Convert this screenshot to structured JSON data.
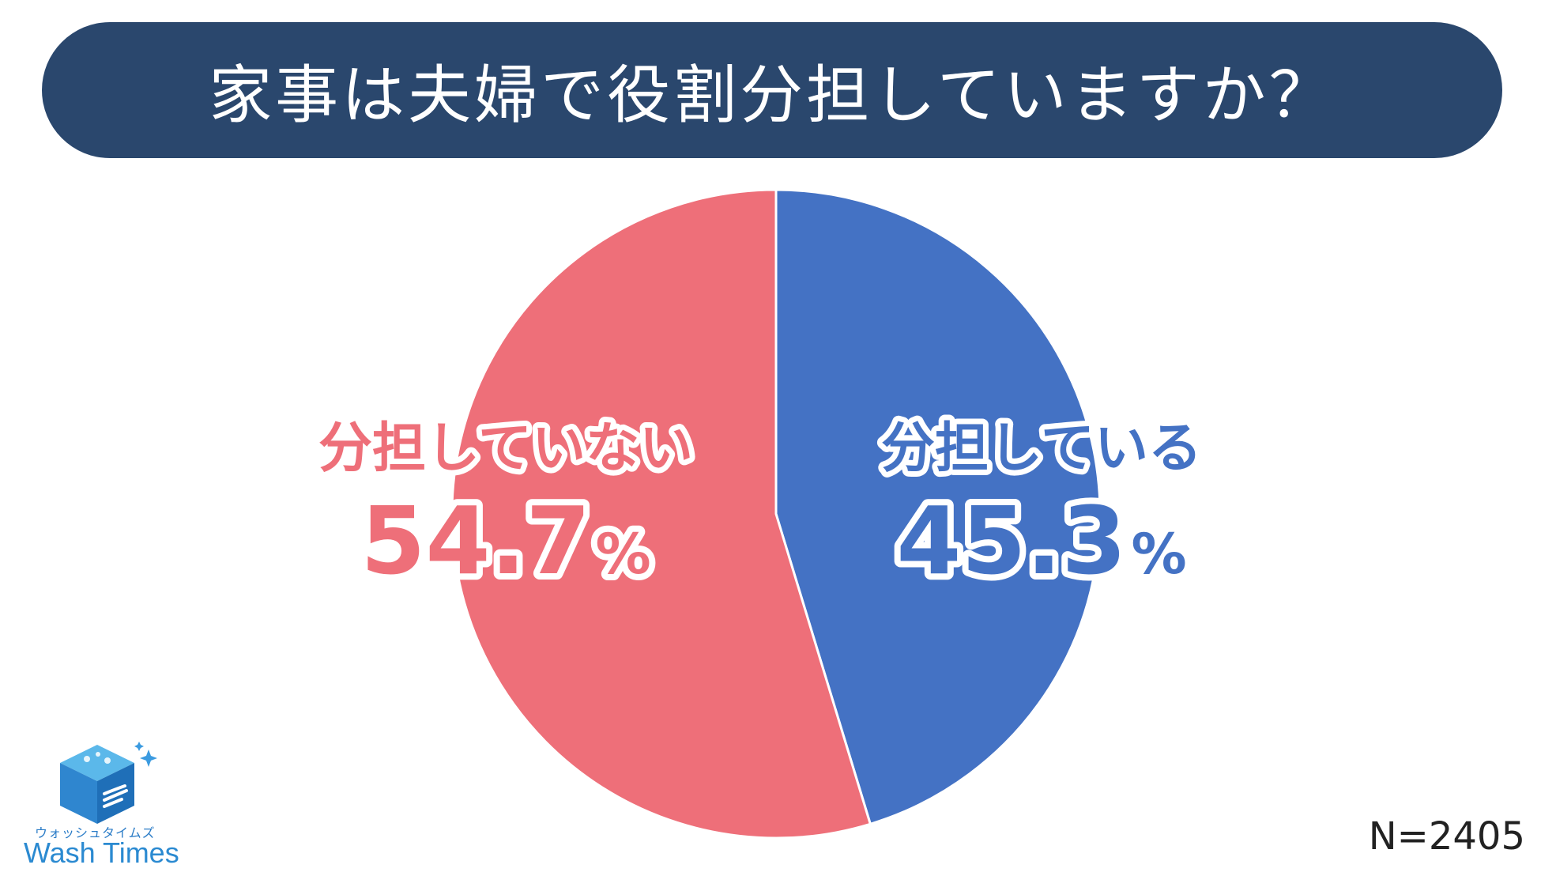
{
  "header": {
    "title": "家事は夫婦で役割分担していますか？"
  },
  "chart_data": {
    "type": "pie",
    "title": "家事は夫婦で役割分担していますか？",
    "slices": [
      {
        "label": "分担している",
        "value": 45.3,
        "display": "45.3",
        "unit": "%",
        "color": "#4472c4"
      },
      {
        "label": "分担していない",
        "value": 54.7,
        "display": "54.7",
        "unit": "%",
        "color": "#ee6f79"
      }
    ],
    "start": "12 o'clock",
    "direction": "clockwise",
    "note": "N=2405"
  },
  "footer": {
    "sample_size": "N=2405"
  },
  "logo": {
    "kana": "ウォッシュタイムズ",
    "name": "Wash Times",
    "icon": "cube-icon",
    "accent": "#2b8ad1"
  }
}
